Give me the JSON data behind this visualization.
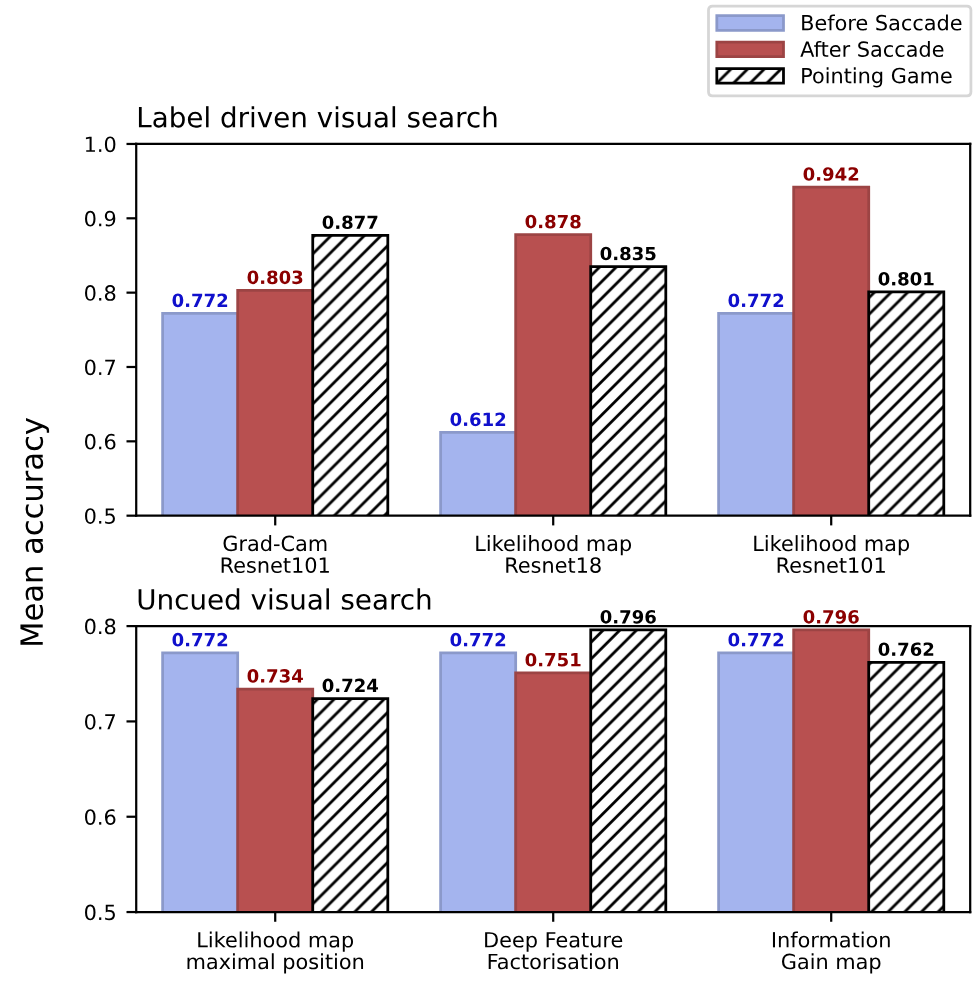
{
  "chart_data": [
    {
      "type": "bar",
      "title": "Label driven visual search",
      "ylabel": "Mean accuracy",
      "categories": [
        "Grad-Cam\nResnet101",
        "Likelihood map\nResnet18",
        "Likelihood map\nResnet101"
      ],
      "series": [
        {
          "name": "Before Saccade",
          "color": "#a4b4ee",
          "values": [
            0.772,
            0.612,
            0.772
          ]
        },
        {
          "name": "After Saccade",
          "color": "#b85050",
          "values": [
            0.803,
            0.878,
            0.942
          ]
        },
        {
          "name": "Pointing Game",
          "color": "#000000",
          "values": [
            0.877,
            0.835,
            0.801
          ]
        }
      ],
      "ylim": [
        0.5,
        1.0
      ],
      "yticks": [
        0.5,
        0.6,
        0.7,
        0.8,
        0.9,
        {
          "value": 1,
          "label": "1.0"
        }
      ],
      "data_labels": true,
      "legend": "top right",
      "grid": false
    },
    {
      "type": "bar",
      "title": "Uncued visual search",
      "categories": [
        "Likelihood map\nmaximal position",
        "Deep Feature\nFactorisation",
        "Information\nGain map"
      ],
      "series": [
        {
          "color": "#a4b4ee",
          "values": [
            0.772,
            0.772,
            0.772
          ]
        },
        {
          "color": "#b85050",
          "values": [
            0.734,
            0.751,
            0.796
          ]
        },
        {
          "color": "#000000",
          "values": [
            0.724,
            0.796,
            0.762
          ]
        }
      ],
      "ylim": [
        0.5,
        0.8
      ],
      "yticks": [
        0.5,
        0.6,
        0.7,
        0.8
      ],
      "data_labels": true,
      "grid": false
    }
  ]
}
